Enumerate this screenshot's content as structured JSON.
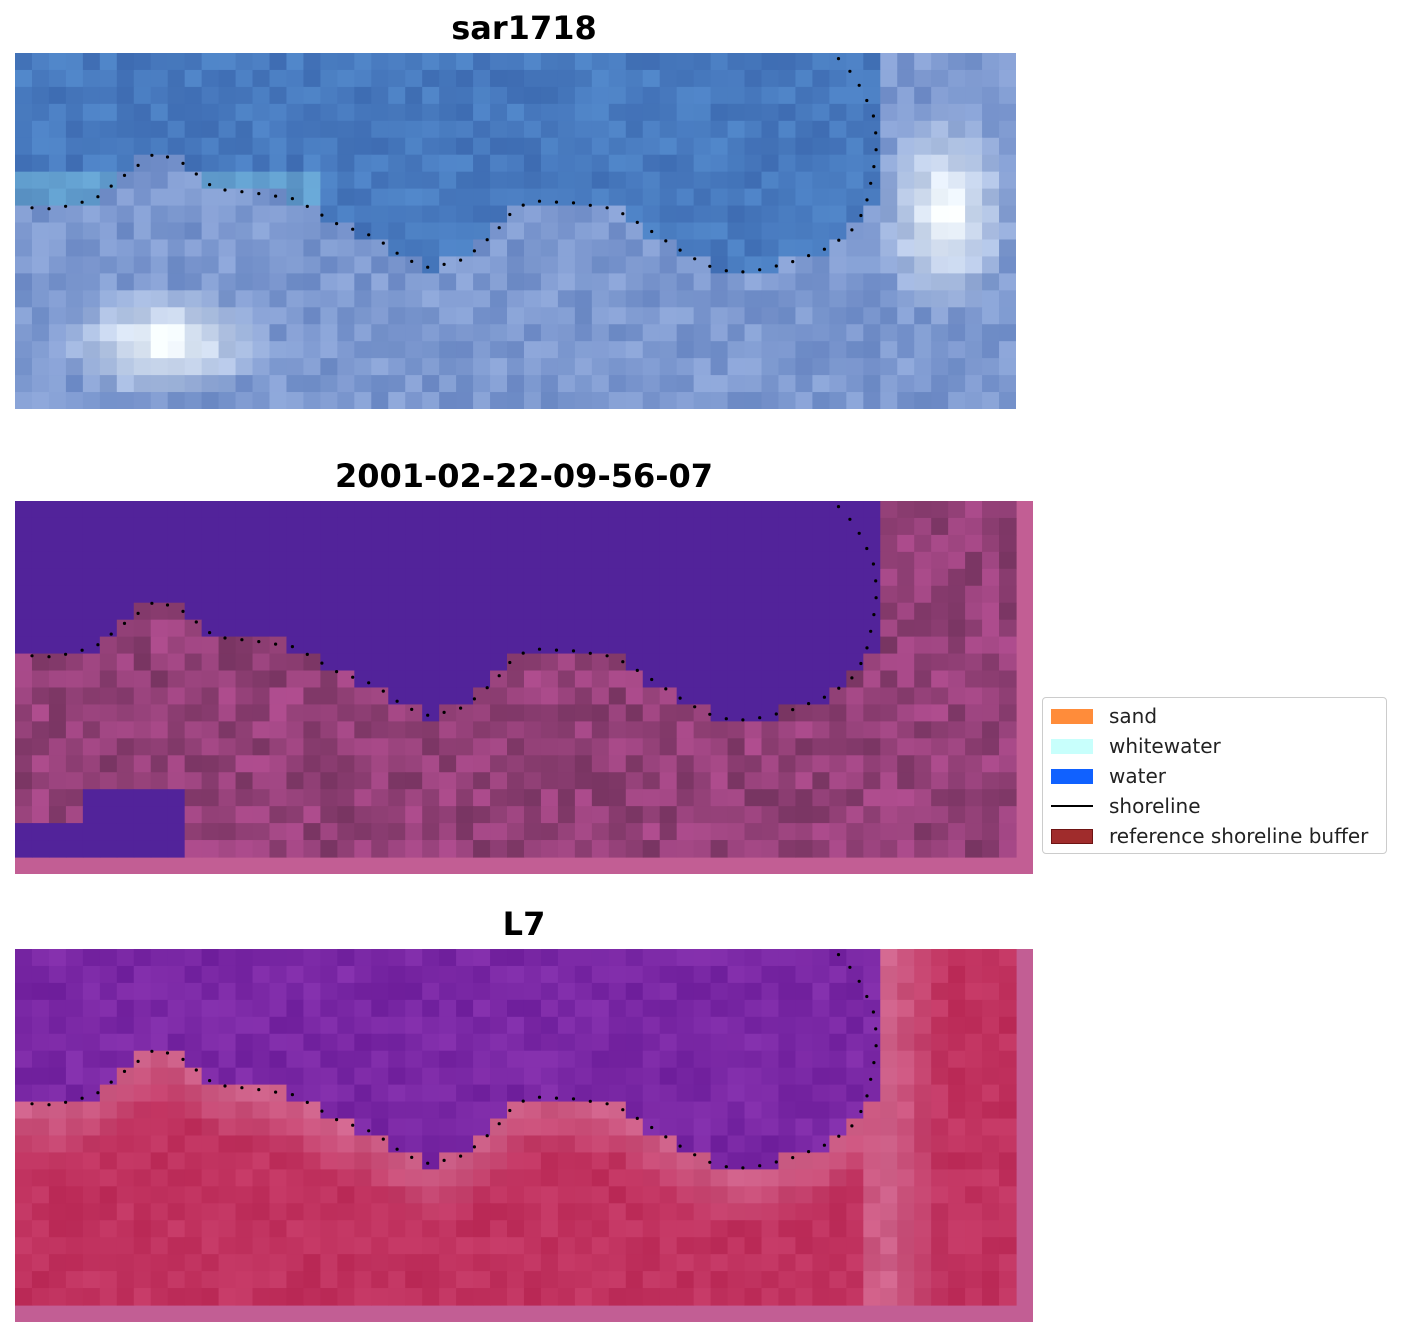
{
  "panels": [
    {
      "title": "sar1718",
      "type": "rgb"
    },
    {
      "title": "2001-02-22-09-56-07",
      "type": "classified"
    },
    {
      "title": "L7",
      "type": "index"
    }
  ],
  "legend": {
    "items": [
      {
        "label": "sand",
        "color": "#ff8c3a",
        "kind": "patch"
      },
      {
        "label": "whitewater",
        "color": "#c8fffc",
        "kind": "patch"
      },
      {
        "label": "water",
        "color": "#1061ff",
        "kind": "patch"
      },
      {
        "label": "shoreline",
        "color": "#000000",
        "kind": "line"
      },
      {
        "label": "reference shoreline buffer",
        "color": "#a02c2c",
        "kind": "patch"
      }
    ]
  },
  "colors": {
    "water_class": "#52239a",
    "buffer_overlay": "#c25e94",
    "index_water": "#71199a",
    "index_land": "#c11d50",
    "rgb_water": "#3e6fb3",
    "rgb_surf": "#e8eef8"
  }
}
